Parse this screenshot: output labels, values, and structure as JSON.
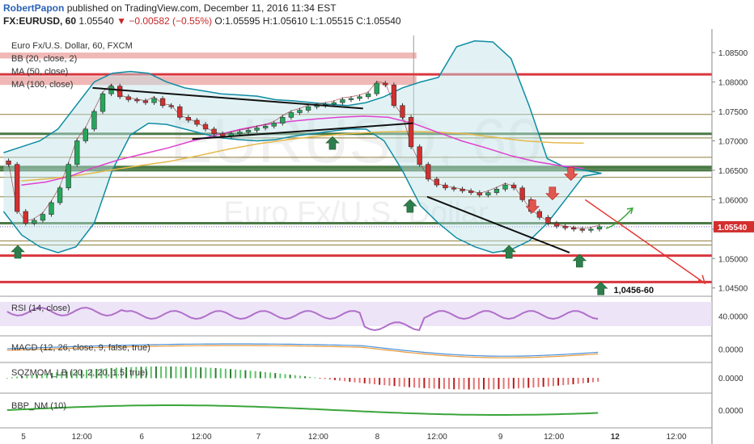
{
  "header": {
    "author": "RobertPapon",
    "published": "published on TradingView.com, December 11, 2016 11:34 EST",
    "symbol": "FX:EURUSD, 60",
    "last": "1.05540",
    "change": "▼ −0.00582 (−0.55%)",
    "ohlc": "O:1.05595 H:1.05610 L:1.05515 C:1.05540"
  },
  "colors": {
    "up": "#26a65b",
    "down": "#d32f2f",
    "bb": "#0e8ca3",
    "ma50": "#e040d0",
    "ma100": "#e6b84a",
    "rsi": "#b06fc9",
    "resistance": "#d9534f"
  },
  "chart_data": {
    "type": "candlestick",
    "title": "Euro Fx/U.S. Dollar, 60, FXCM",
    "watermark_symbol": "EURUSD, 60",
    "watermark_name": "Euro Fx/U.S. Dollar",
    "legend": [
      "Euro Fx/U.S. Dollar, 60, FXCM",
      "BB (20, close, 2)",
      "MA (50, close)",
      "MA (100, close)"
    ],
    "y_axis": {
      "min": 1.044,
      "max": 1.089,
      "ticks": [
        "1.08500",
        "1.08000",
        "1.07500",
        "1.07000",
        "1.06500",
        "1.06000",
        "1.05500",
        "1.05000",
        "1.04500"
      ]
    },
    "x_axis_labels": [
      "5",
      "12:00",
      "6",
      "12:00",
      "7",
      "12:00",
      "8",
      "12:00",
      "9",
      "12:00",
      "12",
      "12:00"
    ],
    "last_price": "1.05540",
    "annotation": "1,0456-60",
    "close_path": [
      1.066,
      1.058,
      1.056,
      1.0565,
      1.0575,
      1.0595,
      1.062,
      1.066,
      1.07,
      1.072,
      1.075,
      1.078,
      1.0793,
      1.0775,
      1.077,
      1.0768,
      1.0765,
      1.0772,
      1.076,
      1.0758,
      1.074,
      1.0735,
      1.0728,
      1.072,
      1.0712,
      1.0708,
      1.0712,
      1.0715,
      1.0718,
      1.0722,
      1.0725,
      1.073,
      1.074,
      1.0748,
      1.0752,
      1.0758,
      1.076,
      1.0762,
      1.0765,
      1.077,
      1.0772,
      1.0775,
      1.078,
      1.0798,
      1.0795,
      1.076,
      1.074,
      1.069,
      1.066,
      1.0635,
      1.0625,
      1.062,
      1.0618,
      1.0615,
      1.0612,
      1.0608,
      1.0612,
      1.0618,
      1.0625,
      1.062,
      1.06,
      1.058,
      1.057,
      1.056,
      1.0555,
      1.0552,
      1.055,
      1.0548,
      1.055,
      1.0554
    ],
    "bb_upper": [
      1.068,
      1.069,
      1.07,
      1.072,
      1.076,
      1.08,
      1.0815,
      1.0818,
      1.0815,
      1.08,
      1.079,
      1.0785,
      1.078,
      1.0778,
      1.0776,
      1.077,
      1.0768,
      1.0765,
      1.0762,
      1.076,
      1.0765,
      1.0775,
      1.079,
      1.08,
      1.0808,
      1.086,
      1.087,
      1.0868,
      1.084,
      1.076,
      1.067,
      1.0655,
      1.065,
      1.0645
    ],
    "bb_lower": [
      1.058,
      1.054,
      1.052,
      1.051,
      1.052,
      1.056,
      1.065,
      1.071,
      1.073,
      1.0728,
      1.072,
      1.0712,
      1.0705,
      1.0702,
      1.07,
      1.0702,
      1.0708,
      1.0712,
      1.0716,
      1.072,
      1.072,
      1.07,
      1.065,
      1.059,
      1.056,
      1.0535,
      1.052,
      1.051,
      1.0515,
      1.053,
      1.056,
      1.06,
      1.064,
      1.0645
    ],
    "ma50": [
      1.0625,
      1.063,
      1.064,
      1.0655,
      1.0668,
      1.0678,
      1.0688,
      1.07,
      1.071,
      1.072,
      1.0728,
      1.0733,
      1.0737,
      1.074,
      1.0742,
      1.074,
      1.073,
      1.0715,
      1.07,
      1.0688,
      1.0675,
      1.0665,
      1.0658,
      1.0653
    ],
    "ma100": [
      1.0632,
      1.0636,
      1.0642,
      1.065,
      1.0658,
      1.0665,
      1.0675,
      1.0686,
      1.0695,
      1.0702,
      1.0708,
      1.0712,
      1.0715,
      1.0716,
      1.0715,
      1.0712,
      1.0706,
      1.07,
      1.0697,
      1.0696
    ],
    "trendlines": [
      {
        "from": [
          1.079,
          0.13
        ],
        "to": [
          1.0755,
          0.51
        ]
      },
      {
        "from": [
          1.0703,
          0.27
        ],
        "to": [
          1.073,
          0.58
        ]
      },
      {
        "from": [
          1.0605,
          0.6
        ],
        "to": [
          1.051,
          0.8
        ]
      }
    ],
    "horizontal_levels": {
      "resistance_zones": [
        [
          1.084,
          1.085
        ],
        [
          1.0795,
          1.081
        ]
      ],
      "strong_lines": [
        1.0813,
        1.0505,
        1.046
      ],
      "green_levels": [
        1.0712,
        1.0655,
        1.065,
        1.056
      ],
      "brown_levels": [
        1.0745,
        1.0705,
        1.0672,
        1.0638,
        1.0605,
        1.053,
        1.0523
      ],
      "dotted_last": 1.0554
    },
    "down_arrows": [
      [
        0.802,
        1.0645
      ],
      [
        0.748,
        1.059
      ],
      [
        0.776,
        1.0612
      ]
    ],
    "up_arrows": [
      [
        0.025,
        1.051
      ],
      [
        0.467,
        1.0695
      ],
      [
        0.576,
        1.0588
      ],
      [
        0.715,
        1.051
      ],
      [
        0.814,
        1.0495
      ],
      [
        0.844,
        1.0448
      ]
    ]
  },
  "indicators": {
    "rsi": {
      "label": "RSI (14, close)",
      "level": "40.0000"
    },
    "macd": {
      "label": "MACD (12, 26, close, 9, false, true)",
      "level": "0.0000"
    },
    "sqzmom": {
      "label": "SQZMOM_LB (20, 2, 20, 1.5, true)",
      "level": "0.0000"
    },
    "bbp": {
      "label": "BBP_NM (10)",
      "level": "0.0000"
    }
  }
}
